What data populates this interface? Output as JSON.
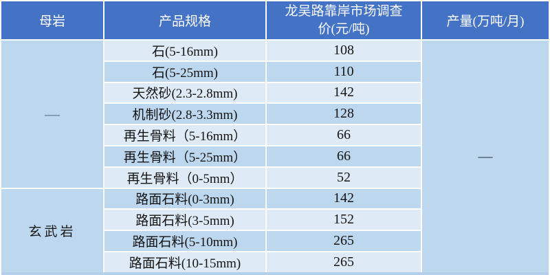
{
  "table": {
    "columns": [
      "母岩",
      "产品规格",
      "龙吴路靠岸市场调查价(元/吨)",
      "产量(万吨/月)"
    ],
    "rock_groups": [
      {
        "label": "—",
        "rows": 7
      },
      {
        "label": "玄武岩",
        "rows": 4
      }
    ],
    "output_value": "—",
    "rows": [
      {
        "spec": "石(5-16mm)",
        "price": "108"
      },
      {
        "spec": "石(5-25mm)",
        "price": "110"
      },
      {
        "spec": "天然砂(2.3-2.8mm)",
        "price": "142"
      },
      {
        "spec": "机制砂(2.8-3.3mm)",
        "price": "128"
      },
      {
        "spec": "再生骨料（5-16mm）",
        "price": "66"
      },
      {
        "spec": "再生骨料（5-25mm）",
        "price": "66"
      },
      {
        "spec": "再生骨料（0-5mm）",
        "price": "52"
      },
      {
        "spec": "路面石料(0-3mm)",
        "price": "142"
      },
      {
        "spec": "路面石料(3-5mm)",
        "price": "152"
      },
      {
        "spec": "路面石料(5-10mm)",
        "price": "265"
      },
      {
        "spec": "路面石料(10-15mm)",
        "price": "265"
      }
    ]
  },
  "colors": {
    "header_bg": "#4472C4",
    "header_text": "#FFFFFF",
    "row_light": "#DEEBF7",
    "row_dark": "#BDD7EE",
    "grid_line": "#FFFFFF"
  },
  "chart_data": {
    "type": "table",
    "title": "龙吴路靠岸市场调查价",
    "columns": [
      "母岩",
      "产品规格",
      "龙吴路靠岸市场调查价(元/吨)",
      "产量(万吨/月)"
    ],
    "rows": [
      [
        "—",
        "石(5-16mm)",
        108,
        "—"
      ],
      [
        "—",
        "石(5-25mm)",
        110,
        "—"
      ],
      [
        "—",
        "天然砂(2.3-2.8mm)",
        142,
        "—"
      ],
      [
        "—",
        "机制砂(2.8-3.3mm)",
        128,
        "—"
      ],
      [
        "—",
        "再生骨料（5-16mm）",
        66,
        "—"
      ],
      [
        "—",
        "再生骨料（5-25mm）",
        66,
        "—"
      ],
      [
        "—",
        "再生骨料（0-5mm）",
        52,
        "—"
      ],
      [
        "玄武岩",
        "路面石料(0-3mm)",
        142,
        "—"
      ],
      [
        "玄武岩",
        "路面石料(3-5mm)",
        152,
        "—"
      ],
      [
        "玄武岩",
        "路面石料(5-10mm)",
        265,
        "—"
      ],
      [
        "玄武岩",
        "路面石料(10-15mm)",
        265,
        "—"
      ]
    ]
  }
}
